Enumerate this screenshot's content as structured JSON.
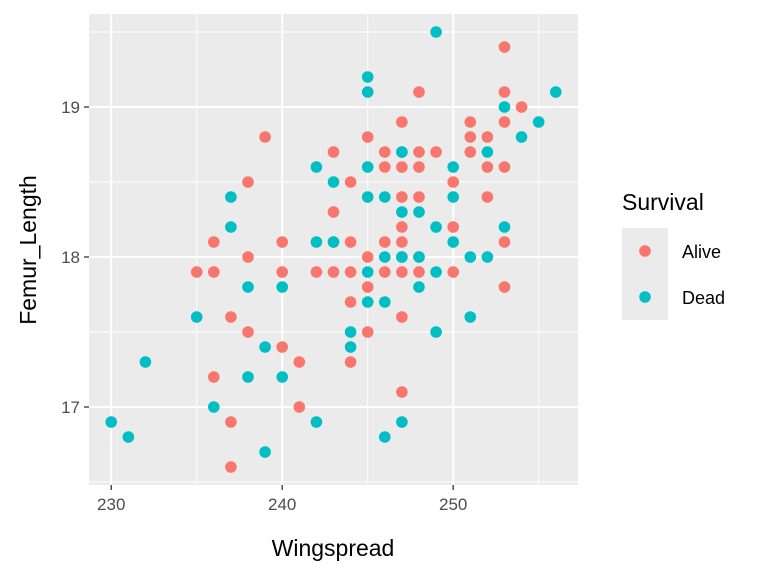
{
  "chart_data": {
    "type": "scatter",
    "title": "",
    "xlabel": "Wingspread",
    "ylabel": "Femur_Length",
    "xlim": [
      228.7,
      257.3
    ],
    "ylim": [
      16.48,
      19.62
    ],
    "x_ticks": [
      230,
      240,
      250
    ],
    "y_ticks": [
      17,
      18,
      19
    ],
    "grid": true,
    "legend": {
      "title": "Survival",
      "position": "right",
      "entries": [
        {
          "label": "Alive",
          "color": "#F8766D"
        },
        {
          "label": "Dead",
          "color": "#00BFC4"
        }
      ]
    },
    "series": [
      {
        "name": "Alive",
        "color": "#F8766D",
        "points": [
          [
            235,
            17.9
          ],
          [
            236,
            18.1
          ],
          [
            236,
            17.9
          ],
          [
            236,
            17.2
          ],
          [
            237,
            17.6
          ],
          [
            237,
            16.9
          ],
          [
            237,
            16.6
          ],
          [
            238,
            18.5
          ],
          [
            238,
            18.0
          ],
          [
            238,
            17.5
          ],
          [
            239,
            18.8
          ],
          [
            240,
            18.1
          ],
          [
            240,
            17.9
          ],
          [
            240,
            17.4
          ],
          [
            241,
            17.3
          ],
          [
            241,
            17.0
          ],
          [
            242,
            17.9
          ],
          [
            243,
            18.7
          ],
          [
            243,
            18.3
          ],
          [
            243,
            18.1
          ],
          [
            243,
            17.9
          ],
          [
            244,
            18.5
          ],
          [
            244,
            18.1
          ],
          [
            244,
            17.9
          ],
          [
            244,
            17.7
          ],
          [
            244,
            17.3
          ],
          [
            245,
            18.8
          ],
          [
            245,
            18.0
          ],
          [
            245,
            17.8
          ],
          [
            245,
            17.5
          ],
          [
            246,
            18.7
          ],
          [
            246,
            18.6
          ],
          [
            246,
            18.1
          ],
          [
            246,
            17.9
          ],
          [
            247,
            18.9
          ],
          [
            247,
            18.7
          ],
          [
            247,
            18.6
          ],
          [
            247,
            18.4
          ],
          [
            247,
            18.2
          ],
          [
            247,
            18.1
          ],
          [
            247,
            18.0
          ],
          [
            247,
            17.9
          ],
          [
            247,
            17.6
          ],
          [
            247,
            17.1
          ],
          [
            248,
            19.1
          ],
          [
            248,
            18.7
          ],
          [
            248,
            18.6
          ],
          [
            248,
            18.4
          ],
          [
            248,
            18.0
          ],
          [
            248,
            17.9
          ],
          [
            249,
            18.7
          ],
          [
            250,
            18.5
          ],
          [
            250,
            18.2
          ],
          [
            250,
            17.9
          ],
          [
            251,
            18.9
          ],
          [
            251,
            18.8
          ],
          [
            251,
            18.7
          ],
          [
            252,
            18.8
          ],
          [
            252,
            18.6
          ],
          [
            252,
            18.4
          ],
          [
            253,
            19.4
          ],
          [
            253,
            19.1
          ],
          [
            253,
            18.9
          ],
          [
            253,
            18.6
          ],
          [
            253,
            18.1
          ],
          [
            253,
            17.8
          ],
          [
            254,
            19.0
          ]
        ]
      },
      {
        "name": "Dead",
        "color": "#00BFC4",
        "points": [
          [
            230,
            16.9
          ],
          [
            231,
            16.8
          ],
          [
            232,
            17.3
          ],
          [
            235,
            17.6
          ],
          [
            236,
            17.0
          ],
          [
            237,
            18.4
          ],
          [
            237,
            18.2
          ],
          [
            238,
            17.8
          ],
          [
            238,
            17.2
          ],
          [
            239,
            17.4
          ],
          [
            239,
            16.7
          ],
          [
            240,
            17.8
          ],
          [
            240,
            17.2
          ],
          [
            242,
            18.6
          ],
          [
            242,
            18.1
          ],
          [
            242,
            16.9
          ],
          [
            243,
            18.5
          ],
          [
            243,
            18.1
          ],
          [
            244,
            17.5
          ],
          [
            244,
            17.4
          ],
          [
            245,
            19.2
          ],
          [
            245,
            19.1
          ],
          [
            245,
            18.6
          ],
          [
            245,
            18.4
          ],
          [
            245,
            17.9
          ],
          [
            245,
            17.7
          ],
          [
            246,
            18.4
          ],
          [
            246,
            18.0
          ],
          [
            246,
            17.7
          ],
          [
            246,
            16.8
          ],
          [
            247,
            18.7
          ],
          [
            247,
            18.3
          ],
          [
            247,
            18.0
          ],
          [
            247,
            16.9
          ],
          [
            248,
            18.3
          ],
          [
            248,
            18.0
          ],
          [
            248,
            17.8
          ],
          [
            249,
            19.5
          ],
          [
            249,
            18.2
          ],
          [
            249,
            17.9
          ],
          [
            249,
            17.5
          ],
          [
            250,
            18.6
          ],
          [
            250,
            18.4
          ],
          [
            250,
            18.1
          ],
          [
            251,
            18.0
          ],
          [
            251,
            17.6
          ],
          [
            252,
            18.7
          ],
          [
            252,
            18.0
          ],
          [
            253,
            19.0
          ],
          [
            253,
            18.2
          ],
          [
            254,
            18.8
          ],
          [
            255,
            18.9
          ],
          [
            256,
            19.1
          ]
        ]
      }
    ]
  }
}
